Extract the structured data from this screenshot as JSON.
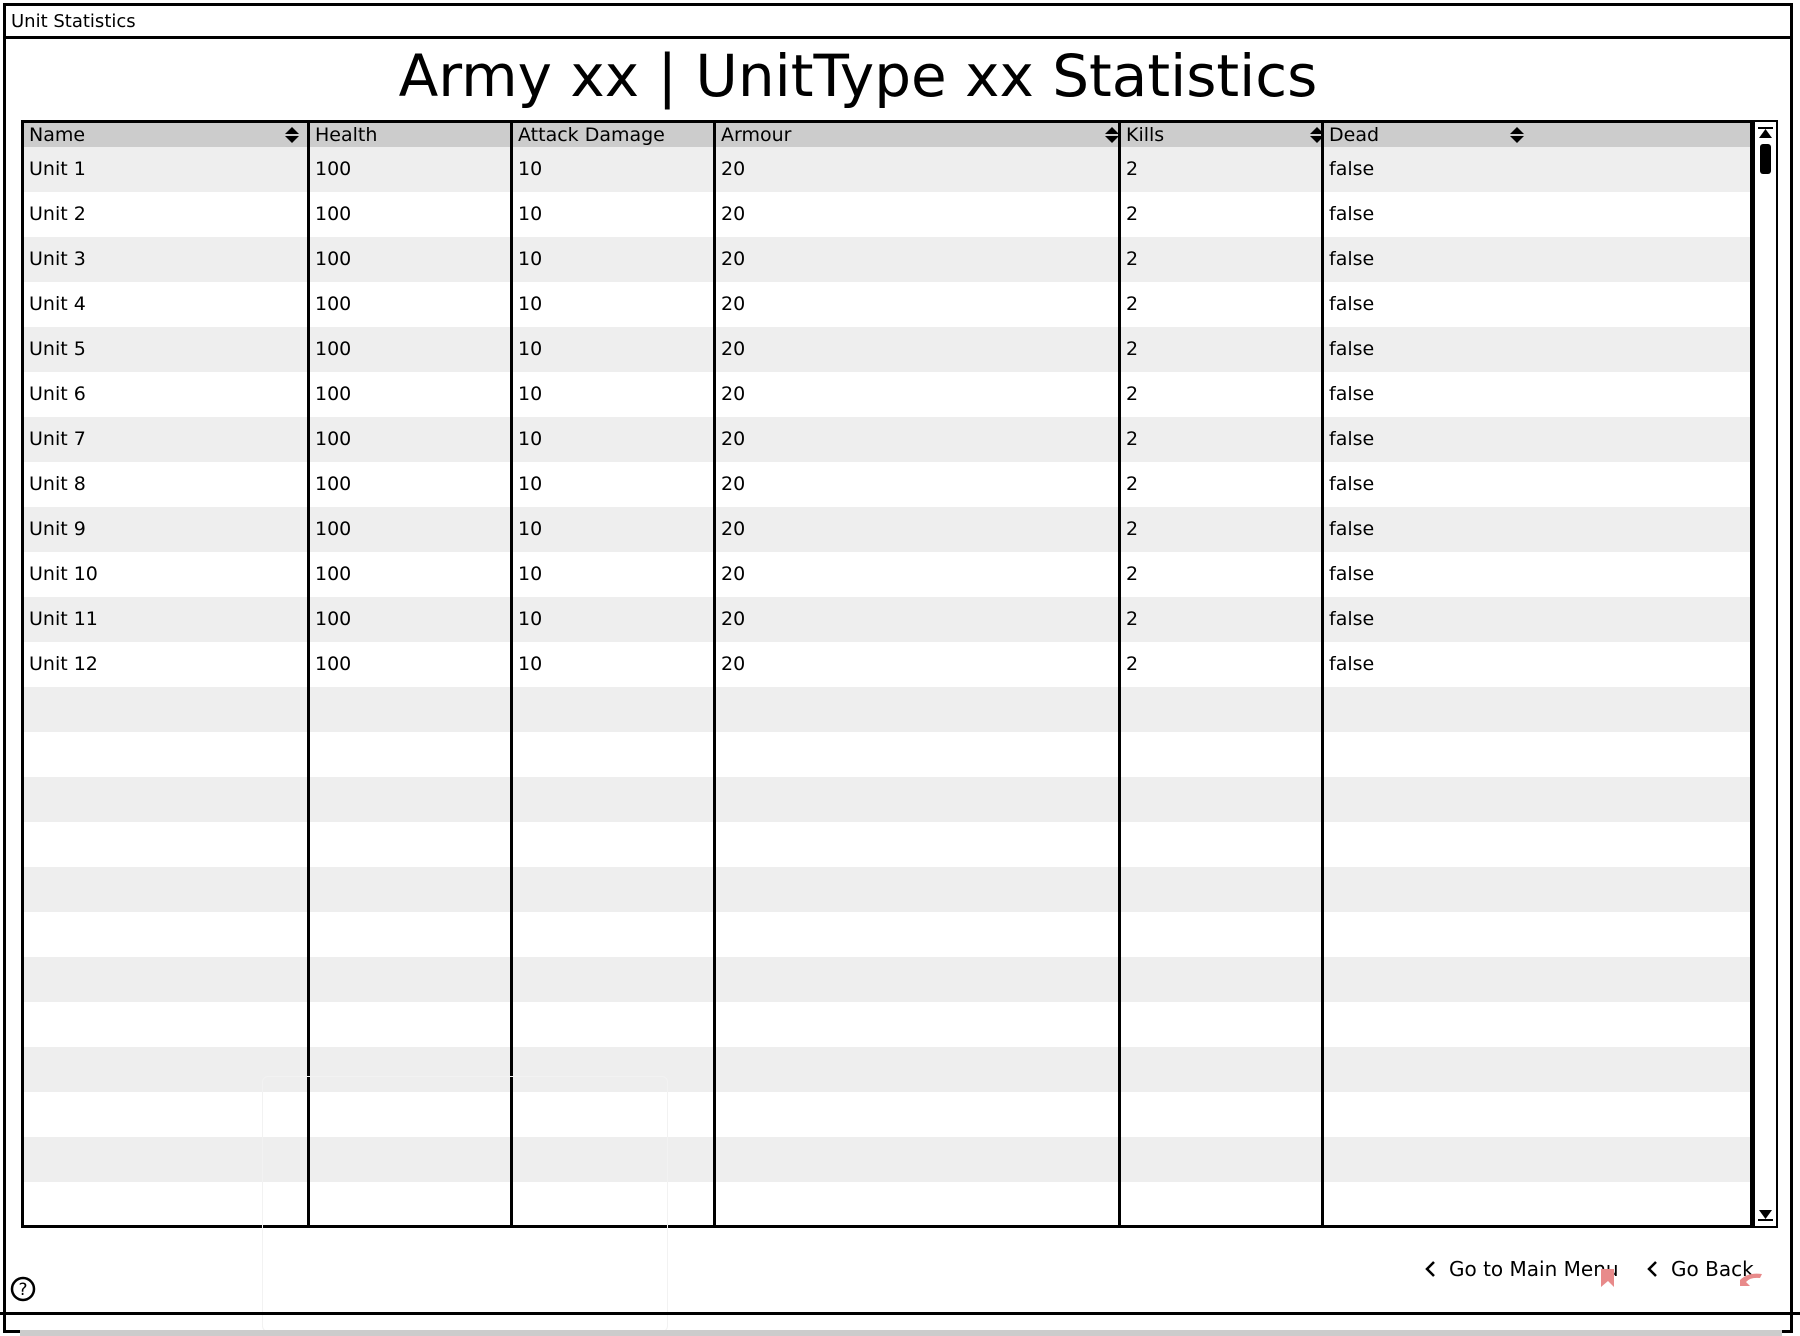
{
  "window": {
    "title": "Unit Statistics"
  },
  "page": {
    "heading": "Army xx | UnitType xx Statistics"
  },
  "table": {
    "columns": [
      {
        "label": "Name",
        "sortable": true
      },
      {
        "label": "Health",
        "sortable": false
      },
      {
        "label": "Attack Damage",
        "sortable": false
      },
      {
        "label": "Armour",
        "sortable": true
      },
      {
        "label": "Kills",
        "sortable": true
      },
      {
        "label": "Dead",
        "sortable": true
      }
    ],
    "rows": [
      [
        "Unit 1",
        "100",
        "10",
        "20",
        "2",
        "false"
      ],
      [
        "Unit 2",
        "100",
        "10",
        "20",
        "2",
        "false"
      ],
      [
        "Unit 3",
        "100",
        "10",
        "20",
        "2",
        "false"
      ],
      [
        "Unit 4",
        "100",
        "10",
        "20",
        "2",
        "false"
      ],
      [
        "Unit 5",
        "100",
        "10",
        "20",
        "2",
        "false"
      ],
      [
        "Unit 6",
        "100",
        "10",
        "20",
        "2",
        "false"
      ],
      [
        "Unit 7",
        "100",
        "10",
        "20",
        "2",
        "false"
      ],
      [
        "Unit 8",
        "100",
        "10",
        "20",
        "2",
        "false"
      ],
      [
        "Unit 9",
        "100",
        "10",
        "20",
        "2",
        "false"
      ],
      [
        "Unit 10",
        "100",
        "10",
        "20",
        "2",
        "false"
      ],
      [
        "Unit 11",
        "100",
        "10",
        "20",
        "2",
        "false"
      ],
      [
        "Unit 12",
        "100",
        "10",
        "20",
        "2",
        "false"
      ]
    ],
    "empty_rows": 12
  },
  "footer": {
    "main_menu_label": "Go to Main Menu",
    "go_back_label": "Go Back"
  },
  "icons": {
    "sort": "sort-updown-icon",
    "chevron": "chevron-left-icon",
    "help": "help-icon",
    "cursor_color": "#e88a8a"
  }
}
